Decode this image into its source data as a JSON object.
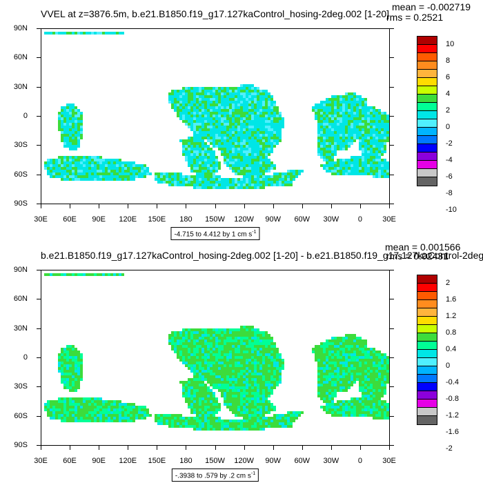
{
  "panels": [
    {
      "id": "top",
      "title": "VVEL at z=3876.5m, b.e21.B1850.f19_g17.127kaControl_hosing-2deg.002 [1-20]",
      "mean_text": "mean = -0.002719",
      "rms_text": "rms = 0.2521",
      "range_text": "-4.715 to 4.412 by 1 cm s",
      "range_unit_sup": "-1",
      "colorbar_labels": [
        "10",
        "8",
        "6",
        "4",
        "2",
        "0",
        "-2",
        "-4",
        "-6",
        "-8",
        "-10"
      ],
      "colorbar_colors": [
        "#b00000",
        "#ff0000",
        "#ff5a00",
        "#ff8c1e",
        "#ffb43c",
        "#ffdc00",
        "#c8ff00",
        "#3cdc3c",
        "#00ff96",
        "#00e6e6",
        "#50f0ff",
        "#00b4ff",
        "#0078ff",
        "#0000ff",
        "#8c00dc",
        "#e600e6",
        "#c8c8c8",
        "#646464"
      ]
    },
    {
      "id": "bottom",
      "title": "b.e21.B1850.f19_g17.127kaControl_hosing-2deg.002 [1-20] - b.e21.B1850.f19_g17.127kaControl-2deg.",
      "mean_text": "mean = 0.001566",
      "rms_text": "rms = 0.02431",
      "range_text": "-.3938 to .579 by .2 cm s",
      "range_unit_sup": "-1",
      "colorbar_labels": [
        "2",
        "1.6",
        "1.2",
        "0.8",
        "0.4",
        "0",
        "-0.4",
        "-0.8",
        "-1.2",
        "-1.6",
        "-2"
      ],
      "colorbar_colors": [
        "#b00000",
        "#ff0000",
        "#ff5a00",
        "#ff8c1e",
        "#ffb43c",
        "#ffdc00",
        "#c8ff00",
        "#3cdc3c",
        "#00ff96",
        "#00e6e6",
        "#50f0ff",
        "#00b4ff",
        "#0078ff",
        "#0000ff",
        "#8c00dc",
        "#e600e6",
        "#c8c8c8",
        "#646464"
      ]
    }
  ],
  "lat_labels": [
    "90N",
    "60N",
    "30N",
    "0",
    "30S",
    "60S",
    "90S"
  ],
  "lon_labels": [
    "30E",
    "60E",
    "90E",
    "120E",
    "150E",
    "180",
    "150W",
    "120W",
    "90W",
    "60W",
    "30W",
    "0",
    "30E"
  ],
  "field_colors": {
    "cyan": "#00e6e6",
    "green": "#3cdc3c",
    "sea_green": "#00ff96",
    "light_cyan": "#50f0ff"
  }
}
